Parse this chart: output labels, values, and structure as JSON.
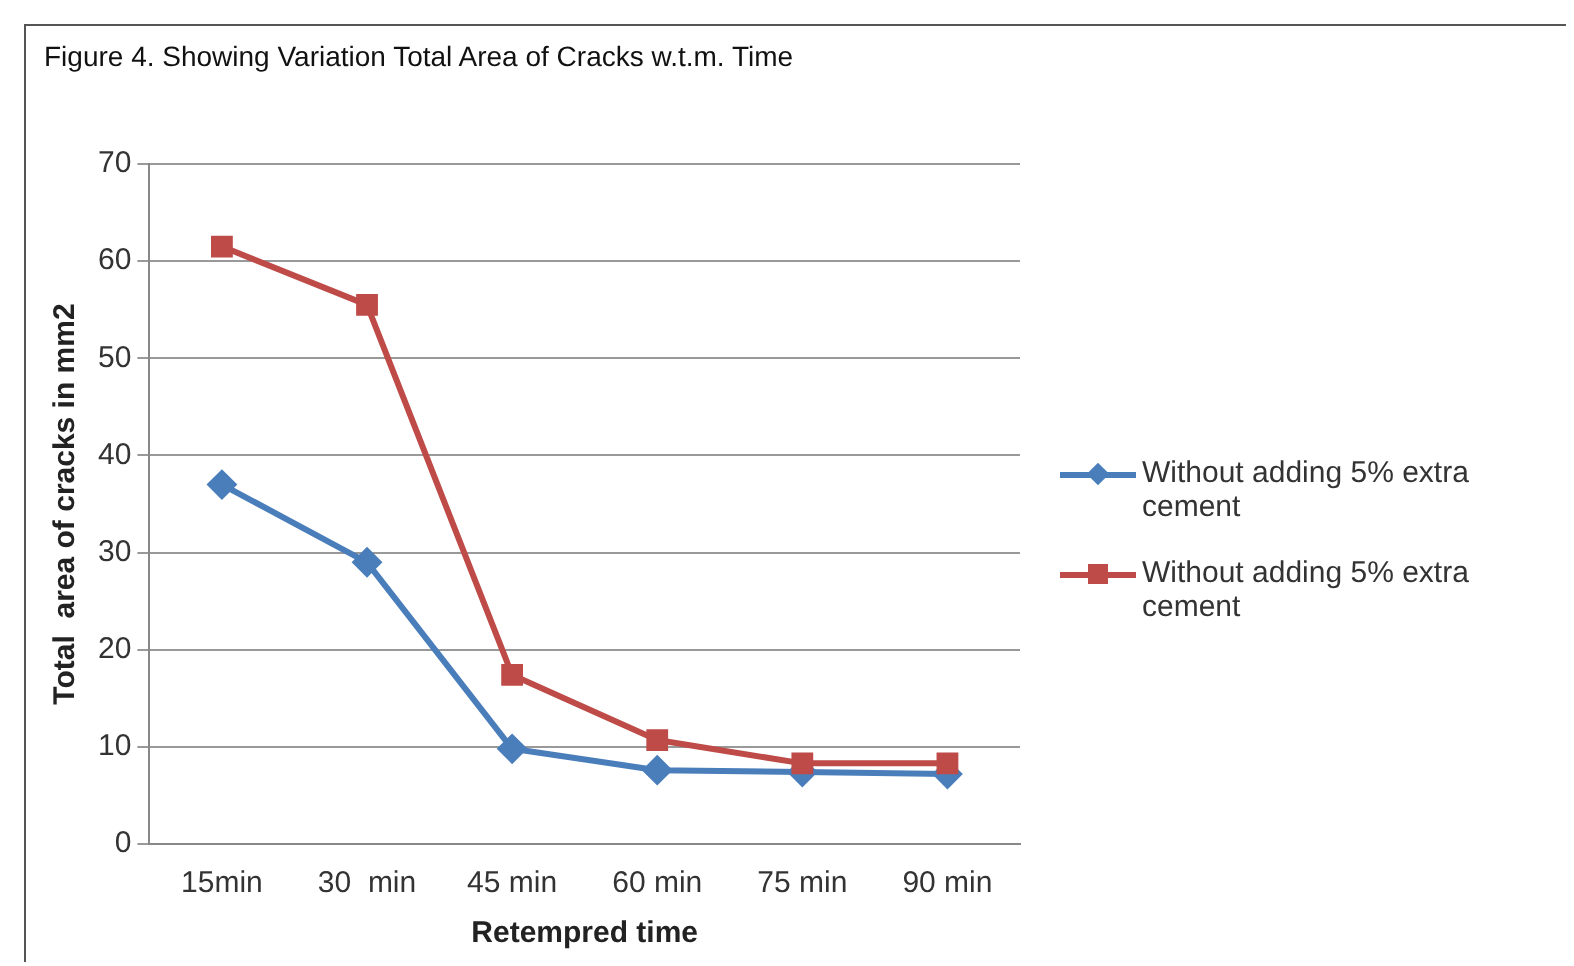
{
  "chart_data": {
    "type": "line",
    "title": "Figure 4. Showing Variation Total Area of Cracks w.t.m. Time",
    "xlabel": "Retempred time",
    "ylabel": "Total  area of cracks in mm2",
    "categories": [
      "15min",
      "30  min",
      "45 min",
      "60 min",
      "75 min",
      "90 min"
    ],
    "series": [
      {
        "name": "Without adding 5% extra cement",
        "color": "#4a7ebb",
        "marker": "diamond",
        "values": [
          37,
          29,
          9.8,
          7.6,
          7.4,
          7.2
        ]
      },
      {
        "name": "Without adding 5% extra cement",
        "color": "#be4b48",
        "marker": "square",
        "values": [
          61.5,
          55.5,
          17.4,
          10.7,
          8.3,
          8.3
        ]
      }
    ],
    "ylim": [
      0,
      70
    ],
    "yticks": [
      0,
      10,
      20,
      30,
      40,
      50,
      60,
      70
    ],
    "grid": "y",
    "legend": "right"
  }
}
